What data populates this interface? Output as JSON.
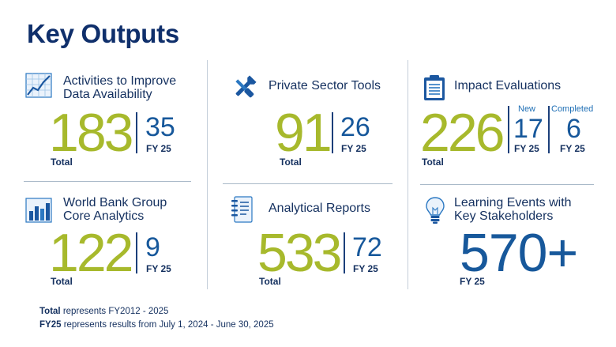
{
  "title": "Key Outputs",
  "colors": {
    "accent_green": "#a7b92c",
    "accent_blue": "#17589b",
    "navy": "#14305f"
  },
  "cards": {
    "activities": {
      "icon": "line-chart-icon",
      "label_line1": "Activities to Improve",
      "label_line2": "Data Availability",
      "total": "183",
      "total_label": "Total",
      "fy_value": "35",
      "fy_label": "FY 25"
    },
    "private_sector": {
      "icon": "wrench-screwdriver-icon",
      "label_line1": "Private Sector Tools",
      "total": "91",
      "total_label": "Total",
      "fy_value": "26",
      "fy_label": "FY 25"
    },
    "impact": {
      "icon": "clipboard-icon",
      "label_line1": "Impact Evaluations",
      "total": "226",
      "total_label": "Total",
      "new_head": "New",
      "new_value": "17",
      "new_fy": "FY 25",
      "completed_head": "Completed",
      "completed_value": "6",
      "completed_fy": "FY 25"
    },
    "core_analytics": {
      "icon": "bar-chart-icon",
      "label_line1": "World Bank Group",
      "label_line2": "Core Analytics",
      "total": "122",
      "total_label": "Total",
      "fy_value": "9",
      "fy_label": "FY 25"
    },
    "analytical_reports": {
      "icon": "notebook-icon",
      "label_line1": "Analytical Reports",
      "total": "533",
      "total_label": "Total",
      "fy_value": "72",
      "fy_label": "FY 25"
    },
    "learning": {
      "icon": "lightbulb-icon",
      "label_line1": "Learning Events with",
      "label_line2": "Key Stakeholders",
      "value": "570+",
      "fy_label": "FY 25"
    }
  },
  "footnote": {
    "line1_bold": "Total",
    "line1_rest": " represents FY2012 - 2025",
    "line2_bold": "FY25",
    "line2_rest": " represents results from July 1, 2024 - June 30, 2025"
  }
}
